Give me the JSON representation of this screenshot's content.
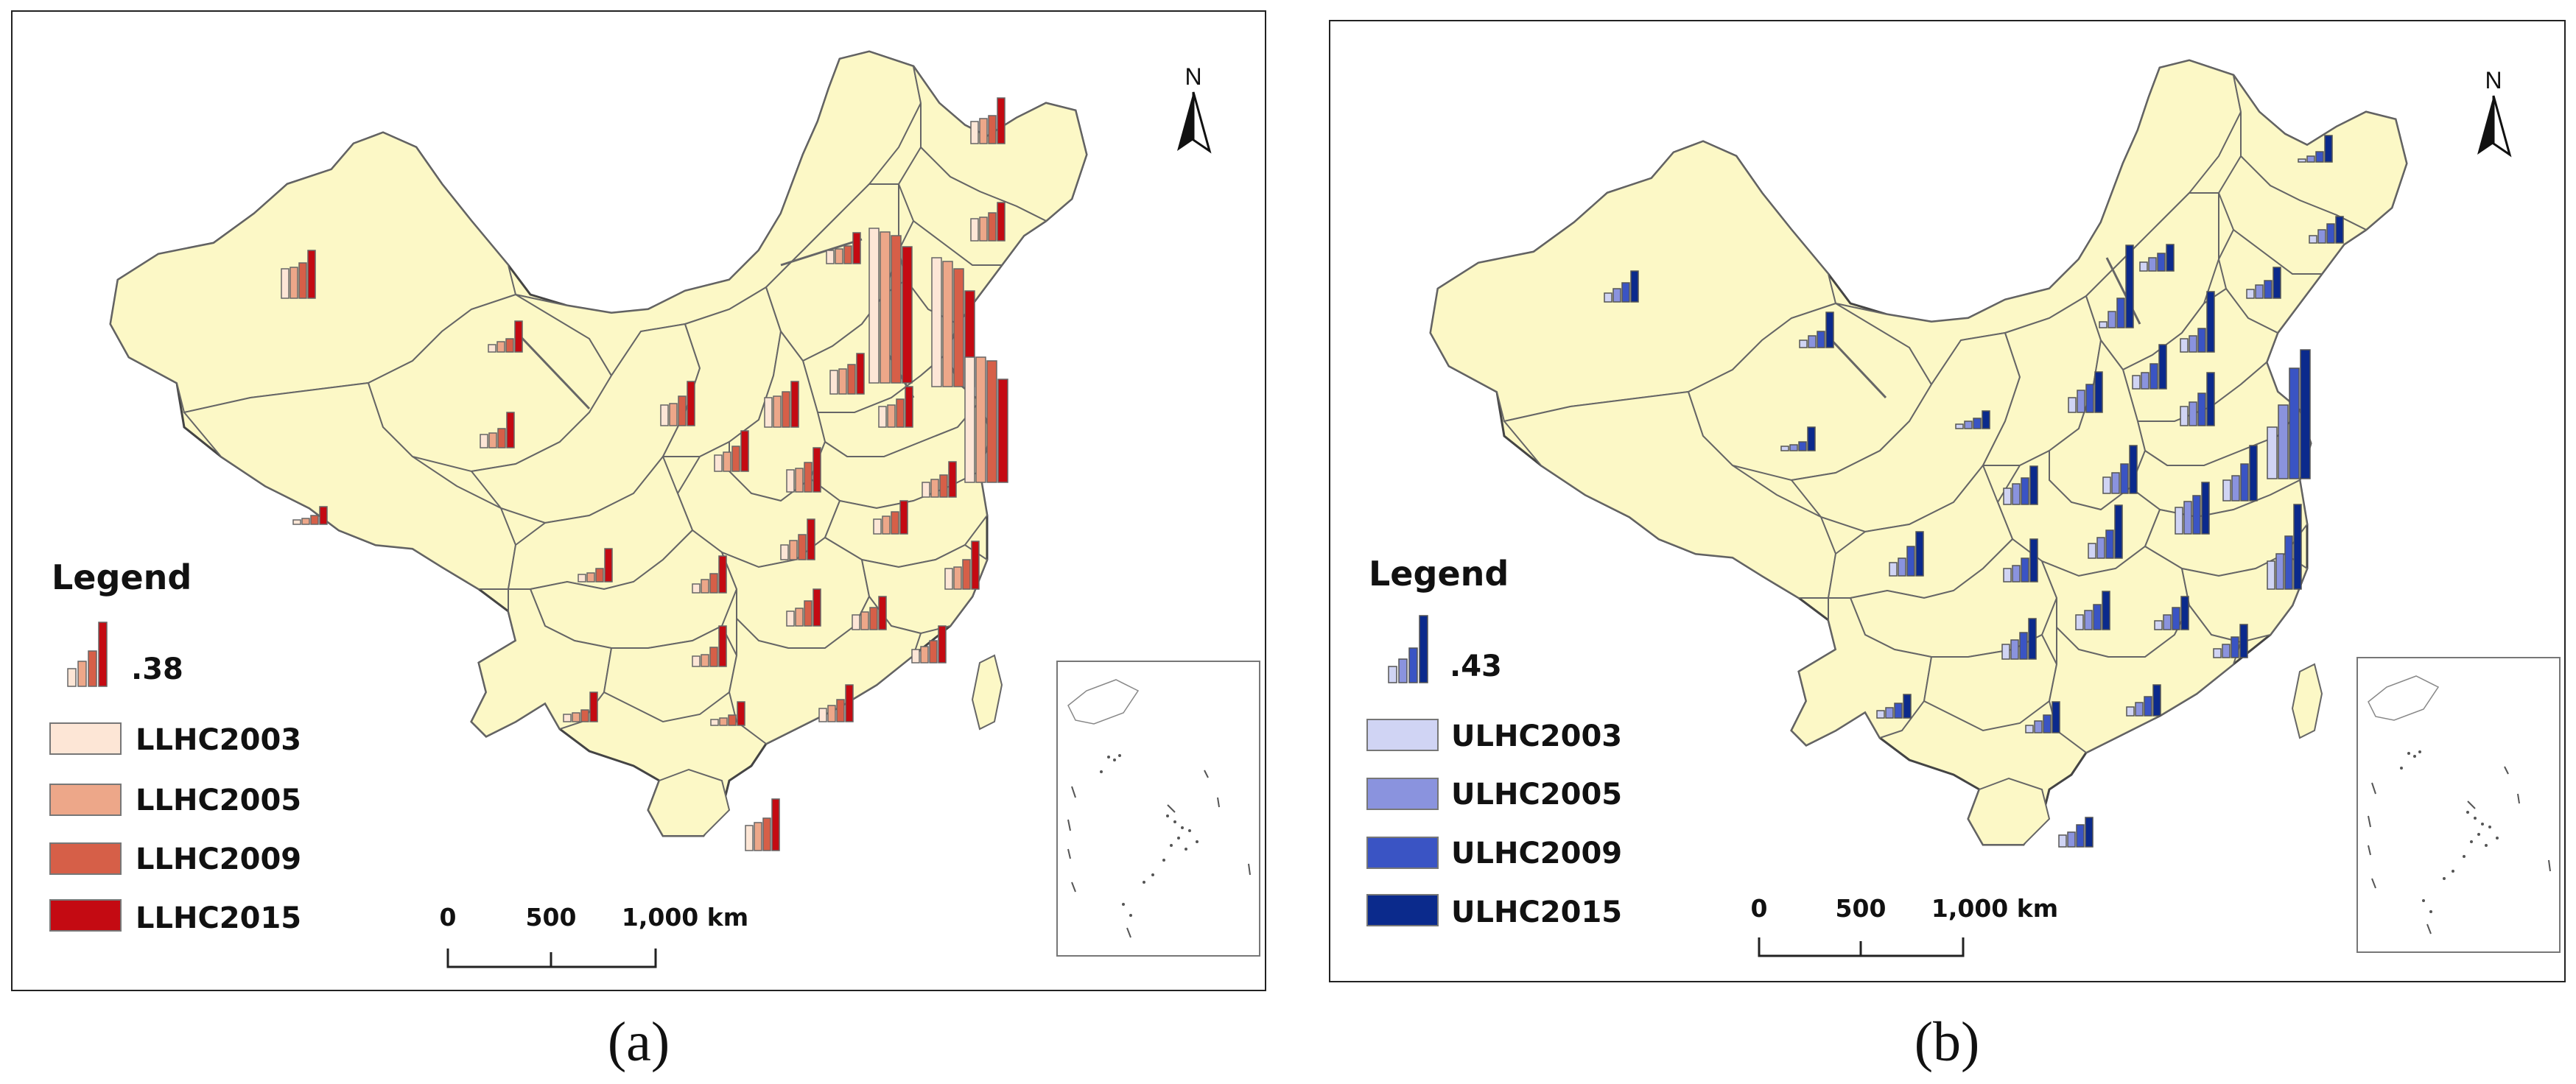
{
  "panels": [
    {
      "id": "a",
      "caption": "(a)",
      "legend": {
        "title": "Legend",
        "scale_value": ".38",
        "items": [
          {
            "label": "LLHC2003",
            "color": "#fde6d6"
          },
          {
            "label": "LLHC2005",
            "color": "#eda789"
          },
          {
            "label": "LLHC2009",
            "color": "#d65f48"
          },
          {
            "label": "LLHC2015",
            "color": "#c40a12"
          }
        ]
      },
      "scale_bar": {
        "ticks": [
          "0",
          "500",
          "1,000 km"
        ]
      },
      "north": "N"
    },
    {
      "id": "b",
      "caption": "(b)",
      "legend": {
        "title": "Legend",
        "scale_value": ".43",
        "items": [
          {
            "label": "ULHC2003",
            "color": "#d0d4f4"
          },
          {
            "label": "ULHC2005",
            "color": "#8a93de"
          },
          {
            "label": "ULHC2009",
            "color": "#3a54c4"
          },
          {
            "label": "ULHC2015",
            "color": "#0b2a8c"
          }
        ]
      },
      "scale_bar": {
        "ticks": [
          "0",
          "500",
          "1,000 km"
        ]
      },
      "north": "N"
    }
  ]
}
